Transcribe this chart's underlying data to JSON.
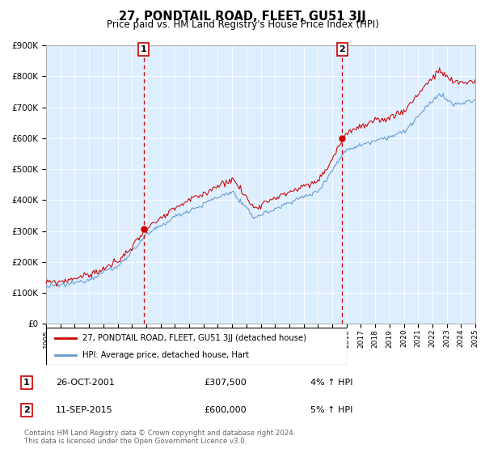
{
  "title": "27, PONDTAIL ROAD, FLEET, GU51 3JJ",
  "subtitle": "Price paid vs. HM Land Registry's House Price Index (HPI)",
  "ylim": [
    0,
    900000
  ],
  "yticks": [
    0,
    100000,
    200000,
    300000,
    400000,
    500000,
    600000,
    700000,
    800000,
    900000
  ],
  "ytick_labels": [
    "£0",
    "£100K",
    "£200K",
    "£300K",
    "£400K",
    "£500K",
    "£600K",
    "£700K",
    "£800K",
    "£900K"
  ],
  "sale1_year": 2001.82,
  "sale1_price": 307500,
  "sale1_label": "1",
  "sale1_date": "26-OCT-2001",
  "sale1_pct": "4%",
  "sale2_year": 2015.7,
  "sale2_price": 600000,
  "sale2_label": "2",
  "sale2_date": "11-SEP-2015",
  "sale2_pct": "5%",
  "line1_color": "#cc0000",
  "line2_color": "#6699cc",
  "bg_color": "#ddeeff",
  "sale_dot_color": "#cc0000",
  "legend1": "27, PONDTAIL ROAD, FLEET, GU51 3JJ (detached house)",
  "legend2": "HPI: Average price, detached house, Hart",
  "footnote1": "Contains HM Land Registry data © Crown copyright and database right 2024.",
  "footnote2": "This data is licensed under the Open Government Licence v3.0."
}
